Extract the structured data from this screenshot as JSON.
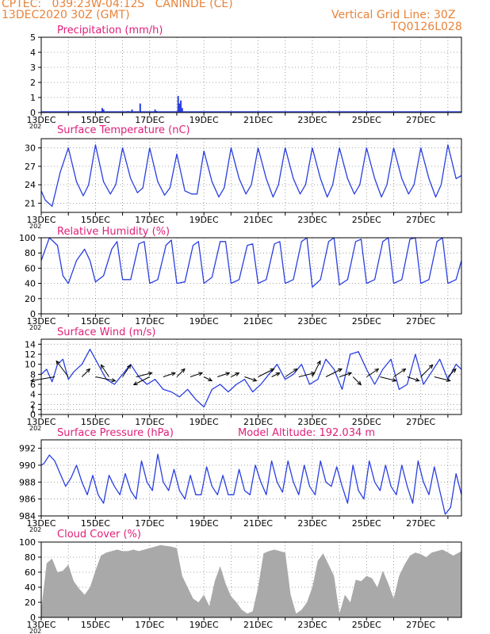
{
  "header": {
    "line1": "CPTEC:   039:23W-04:12S   CANINDE (CE)",
    "line2": "13DEC2020 30Z (GMT)",
    "right1": "Vertical Grid Line: 30Z",
    "right2": "TQ0126L028"
  },
  "colors": {
    "header": "#e8833a",
    "panel_title": "#e0207a",
    "series": "#2a3fe0",
    "cloud": "#a9a9a9",
    "wind_arrow": "#000000"
  },
  "x_ticks": [
    "13DEC",
    "15DEC",
    "17DEC",
    "19DEC",
    "21DEC",
    "23DEC",
    "25DEC",
    "27DEC"
  ],
  "x_tick_clipped": "202",
  "chart_data": [
    {
      "id": "precip",
      "type": "bar",
      "title": "Precipitation (mm/h)",
      "x_unit": "day since 13DEC",
      "x_range": [
        0,
        15.5
      ],
      "ylim": [
        0,
        5
      ],
      "yticks": [
        "0",
        "1",
        "2",
        "3",
        "4",
        "5"
      ],
      "grid": true,
      "x": [
        2.25,
        2.3,
        3.2,
        3.35,
        3.65,
        4.2,
        4.25,
        5.05,
        5.1,
        5.15,
        5.2,
        10.6
      ],
      "values": [
        0.3,
        0.2,
        0.1,
        0.2,
        0.6,
        0.2,
        0.1,
        1.1,
        0.6,
        0.8,
        0.3,
        0.1
      ]
    },
    {
      "id": "temp",
      "type": "line",
      "title": "Surface Temperature (nC)",
      "x_range": [
        0,
        15.5
      ],
      "ylim": [
        19.5,
        31.5
      ],
      "yticks": [
        "21",
        "24",
        "27",
        "30"
      ],
      "grid": true,
      "x": [
        0,
        0.15,
        0.4,
        0.7,
        1,
        1.3,
        1.55,
        1.75,
        2.0,
        2.3,
        2.55,
        2.75,
        3.0,
        3.3,
        3.55,
        3.75,
        4.0,
        4.3,
        4.55,
        4.75,
        5.0,
        5.3,
        5.55,
        5.75,
        6.0,
        6.3,
        6.55,
        6.75,
        7.0,
        7.3,
        7.55,
        7.75,
        8.0,
        8.3,
        8.55,
        8.75,
        9.0,
        9.3,
        9.55,
        9.75,
        10.0,
        10.3,
        10.55,
        10.75,
        11.0,
        11.3,
        11.55,
        11.75,
        12.0,
        12.3,
        12.55,
        12.75,
        13.0,
        13.3,
        13.55,
        13.75,
        14.0,
        14.3,
        14.55,
        14.75,
        15.0,
        15.3,
        15.5
      ],
      "values": [
        23,
        21.5,
        20.5,
        26,
        30,
        24.5,
        22.2,
        24,
        30.5,
        24.5,
        22.5,
        24,
        30,
        25,
        22.7,
        23.5,
        30,
        24.5,
        22.3,
        23.5,
        29,
        23,
        22.5,
        22.5,
        29.5,
        24.5,
        22,
        23.5,
        30,
        25,
        22.5,
        24,
        30,
        25,
        22,
        24,
        30,
        25,
        22.5,
        24,
        30,
        25,
        22,
        24,
        30,
        25,
        22.5,
        24,
        30,
        25,
        22,
        24,
        30,
        25,
        22.5,
        24,
        30,
        25,
        22,
        24,
        30.5,
        25,
        25.5
      ]
    },
    {
      "id": "rh",
      "type": "line",
      "title": "Relative Humidity (%)",
      "x_range": [
        0,
        15.5
      ],
      "ylim": [
        0,
        100
      ],
      "yticks": [
        "0",
        "20",
        "40",
        "60",
        "80",
        "100"
      ],
      "grid": true,
      "x": [
        0,
        0.3,
        0.6,
        0.8,
        1,
        1.3,
        1.6,
        1.8,
        2.0,
        2.3,
        2.6,
        2.8,
        3.0,
        3.3,
        3.6,
        3.8,
        4.0,
        4.3,
        4.6,
        4.8,
        5.0,
        5.3,
        5.6,
        5.8,
        6.0,
        6.3,
        6.6,
        6.8,
        7.0,
        7.3,
        7.6,
        7.8,
        8.0,
        8.3,
        8.6,
        8.8,
        9.0,
        9.3,
        9.6,
        9.8,
        10.0,
        10.3,
        10.6,
        10.8,
        11.0,
        11.3,
        11.6,
        11.8,
        12.0,
        12.3,
        12.6,
        12.8,
        13.0,
        13.3,
        13.6,
        13.8,
        14.0,
        14.3,
        14.6,
        14.8,
        15.0,
        15.3,
        15.5
      ],
      "values": [
        70,
        100,
        90,
        50,
        40,
        70,
        85,
        70,
        42,
        50,
        85,
        95,
        45,
        45,
        92,
        95,
        40,
        45,
        90,
        97,
        40,
        42,
        90,
        95,
        40,
        48,
        95,
        95,
        40,
        45,
        90,
        92,
        40,
        45,
        92,
        95,
        40,
        45,
        95,
        100,
        35,
        45,
        95,
        100,
        38,
        45,
        95,
        98,
        40,
        45,
        95,
        100,
        40,
        45,
        98,
        100,
        40,
        45,
        95,
        100,
        40,
        45,
        70
      ]
    },
    {
      "id": "wind",
      "type": "line",
      "title": "Surface Wind (m/s)",
      "x_range": [
        0,
        15.5
      ],
      "ylim": [
        0,
        15
      ],
      "yticks": [
        "0",
        "1",
        "2",
        "4",
        "6",
        "8",
        "10",
        "12",
        "14"
      ],
      "grid": true,
      "x": [
        0,
        0.2,
        0.4,
        0.6,
        0.8,
        1.0,
        1.2,
        1.5,
        1.8,
        2.1,
        2.4,
        2.7,
        3.0,
        3.3,
        3.6,
        3.9,
        4.2,
        4.5,
        4.8,
        5.1,
        5.4,
        5.7,
        6.0,
        6.3,
        6.6,
        6.9,
        7.2,
        7.5,
        7.8,
        8.1,
        8.4,
        8.7,
        9.0,
        9.3,
        9.6,
        9.9,
        10.2,
        10.5,
        10.8,
        11.1,
        11.4,
        11.7,
        12.0,
        12.3,
        12.6,
        12.9,
        13.2,
        13.5,
        13.8,
        14.1,
        14.4,
        14.7,
        15.0,
        15.3,
        15.5
      ],
      "values": [
        8,
        9,
        6.5,
        10,
        11,
        7,
        8.5,
        10,
        13,
        10,
        7,
        6,
        8,
        10,
        7.5,
        6,
        7,
        5,
        4.5,
        3.5,
        5,
        3,
        1.5,
        5,
        6,
        4.5,
        6,
        7,
        4.5,
        6,
        8,
        10,
        7,
        8,
        10,
        6,
        7,
        11,
        9,
        5,
        12,
        12.5,
        9,
        6,
        9,
        11,
        5,
        6,
        12,
        6,
        8.5,
        11,
        7,
        10,
        9
      ],
      "vectors": [
        {
          "x": 0.5,
          "u": -6,
          "v": -1
        },
        {
          "x": 1.0,
          "u": -3,
          "v": 4
        },
        {
          "x": 1.5,
          "u": 2,
          "v": 2
        },
        {
          "x": 2.0,
          "u": 5,
          "v": -1
        },
        {
          "x": 2.5,
          "u": -2,
          "v": 3
        },
        {
          "x": 3.0,
          "u": 2,
          "v": 3
        },
        {
          "x": 3.5,
          "u": 4,
          "v": 1
        },
        {
          "x": 4.0,
          "u": -4,
          "v": -2
        },
        {
          "x": 4.5,
          "u": 3,
          "v": 1
        },
        {
          "x": 5.0,
          "u": 2,
          "v": 2
        },
        {
          "x": 5.5,
          "u": 3,
          "v": 1
        },
        {
          "x": 6.0,
          "u": 2,
          "v": -1
        },
        {
          "x": 6.5,
          "u": 3,
          "v": 1
        },
        {
          "x": 7.0,
          "u": 2,
          "v": 1
        },
        {
          "x": 7.5,
          "u": 3,
          "v": -1
        },
        {
          "x": 8.0,
          "u": 4,
          "v": 2
        },
        {
          "x": 8.5,
          "u": 2,
          "v": 1
        },
        {
          "x": 9.0,
          "u": 3,
          "v": 2
        },
        {
          "x": 9.5,
          "u": 4,
          "v": 1
        },
        {
          "x": 10.0,
          "u": 2,
          "v": 4
        },
        {
          "x": 10.5,
          "u": 4,
          "v": 2
        },
        {
          "x": 11.0,
          "u": 3,
          "v": 1
        },
        {
          "x": 11.5,
          "u": 2,
          "v": -2
        },
        {
          "x": 12.0,
          "u": 3,
          "v": 2
        },
        {
          "x": 12.5,
          "u": 4,
          "v": -1
        },
        {
          "x": 13.0,
          "u": 3,
          "v": 2
        },
        {
          "x": 13.5,
          "u": 3,
          "v": -1
        },
        {
          "x": 14.0,
          "u": 3,
          "v": 3
        },
        {
          "x": 14.5,
          "u": 4,
          "v": -1
        },
        {
          "x": 15.0,
          "u": 2,
          "v": 2
        }
      ]
    },
    {
      "id": "pressure",
      "type": "line",
      "title": "Surface Pressure (hPa)",
      "annotation": "Model Altitude: 192.034 m",
      "x_range": [
        0,
        15.5
      ],
      "ylim": [
        984,
        993
      ],
      "yticks": [
        "984",
        "986",
        "988",
        "990",
        "992"
      ],
      "grid": true,
      "x": [
        0,
        0.1,
        0.3,
        0.5,
        0.7,
        0.9,
        1.1,
        1.3,
        1.5,
        1.7,
        1.9,
        2.1,
        2.3,
        2.5,
        2.7,
        2.9,
        3.1,
        3.3,
        3.5,
        3.7,
        3.9,
        4.1,
        4.3,
        4.5,
        4.7,
        4.9,
        5.1,
        5.3,
        5.5,
        5.7,
        5.9,
        6.1,
        6.3,
        6.5,
        6.7,
        6.9,
        7.1,
        7.3,
        7.5,
        7.7,
        7.9,
        8.1,
        8.3,
        8.5,
        8.7,
        8.9,
        9.1,
        9.3,
        9.5,
        9.7,
        9.9,
        10.1,
        10.3,
        10.5,
        10.7,
        10.9,
        11.1,
        11.3,
        11.5,
        11.7,
        11.9,
        12.1,
        12.3,
        12.5,
        12.7,
        12.9,
        13.1,
        13.3,
        13.5,
        13.7,
        13.9,
        14.1,
        14.3,
        14.5,
        14.7,
        14.9,
        15.1,
        15.3,
        15.5
      ],
      "values": [
        990,
        990.2,
        991.2,
        990.5,
        989,
        987.5,
        988.5,
        990,
        988,
        986.5,
        988.8,
        986.5,
        985.5,
        988.8,
        987.5,
        986.5,
        989,
        987,
        986,
        990.5,
        988,
        987,
        991.3,
        988,
        987,
        989.5,
        987,
        986,
        988.8,
        986.5,
        986.5,
        989.8,
        987.5,
        986.5,
        988.8,
        986.5,
        986.5,
        989.5,
        987,
        986.5,
        990,
        988,
        986.5,
        990.5,
        988,
        986.8,
        990.5,
        988,
        986.5,
        990,
        987.5,
        986.5,
        990.5,
        988,
        987.5,
        989.8,
        987.5,
        985.5,
        990,
        987,
        986,
        990.5,
        988,
        987,
        990,
        987.5,
        986.5,
        990,
        987.5,
        985.5,
        990.5,
        988,
        986.5,
        989.8,
        987,
        984.2,
        985,
        989,
        986.5
      ]
    },
    {
      "id": "cloud",
      "type": "area",
      "title": "Cloud Cover (%)",
      "x_range": [
        0,
        15.5
      ],
      "ylim": [
        0,
        100
      ],
      "yticks": [
        "0",
        "20",
        "40",
        "60",
        "80",
        "100"
      ],
      "grid": true,
      "x": [
        0,
        0.2,
        0.4,
        0.6,
        0.8,
        1.0,
        1.2,
        1.4,
        1.6,
        1.8,
        2.0,
        2.2,
        2.4,
        2.6,
        2.8,
        3.0,
        3.2,
        3.4,
        3.6,
        3.8,
        4.0,
        4.2,
        4.4,
        4.6,
        4.8,
        5.0,
        5.2,
        5.4,
        5.6,
        5.8,
        6.0,
        6.2,
        6.4,
        6.6,
        6.8,
        7.0,
        7.2,
        7.4,
        7.6,
        7.8,
        8.0,
        8.2,
        8.4,
        8.6,
        8.8,
        9.0,
        9.2,
        9.4,
        9.6,
        9.8,
        10.0,
        10.2,
        10.4,
        10.6,
        10.8,
        11.0,
        11.2,
        11.4,
        11.6,
        11.8,
        12.0,
        12.2,
        12.4,
        12.6,
        12.8,
        13.0,
        13.2,
        13.4,
        13.6,
        13.8,
        14.0,
        14.2,
        14.4,
        14.6,
        14.8,
        15.0,
        15.2,
        15.4,
        15.5
      ],
      "values": [
        10,
        72,
        78,
        60,
        62,
        70,
        48,
        38,
        30,
        40,
        62,
        82,
        86,
        88,
        90,
        88,
        88,
        90,
        88,
        90,
        92,
        94,
        96,
        95,
        94,
        92,
        55,
        40,
        25,
        20,
        30,
        15,
        48,
        68,
        45,
        28,
        20,
        10,
        5,
        8,
        40,
        85,
        88,
        90,
        88,
        86,
        30,
        5,
        10,
        20,
        40,
        75,
        85,
        70,
        55,
        5,
        30,
        20,
        50,
        48,
        55,
        52,
        40,
        62,
        45,
        25,
        55,
        70,
        82,
        86,
        84,
        80,
        86,
        88,
        90,
        86,
        82,
        86,
        88
      ]
    }
  ]
}
